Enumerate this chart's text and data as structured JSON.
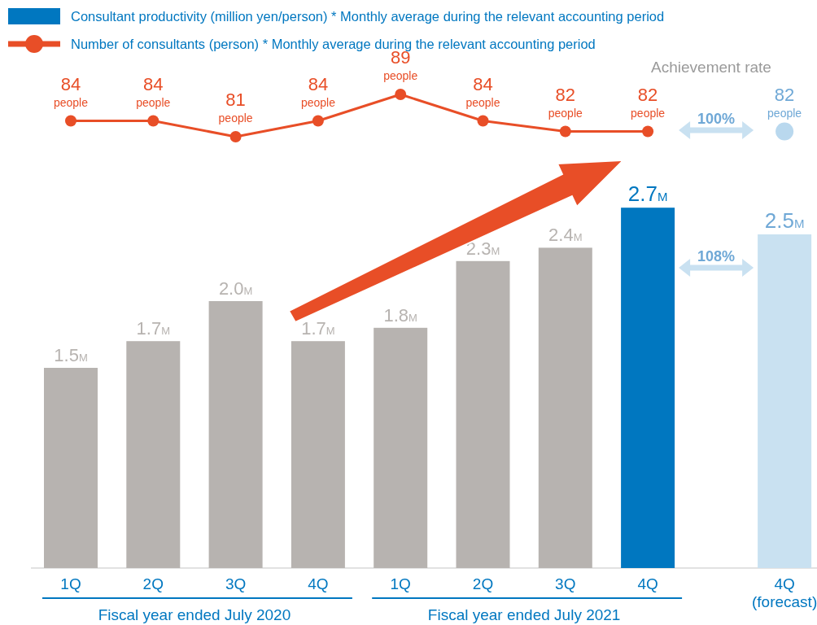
{
  "chart_data": [
    {
      "type": "line",
      "categories": [
        "1Q",
        "2Q",
        "3Q",
        "4Q",
        "1Q",
        "2Q",
        "3Q",
        "4Q",
        "4Q\n(forecast)"
      ],
      "series": [
        {
          "name": "Number of consultants (person) * Monthly average during the relevant accounting period",
          "color": "#e84e27",
          "values": [
            84,
            84,
            81,
            84,
            89,
            84,
            82,
            82,
            null
          ],
          "value_labels": [
            "84\npeople",
            "84\npeople",
            "81\npeople",
            "84\npeople",
            "89\npeople",
            "84\npeople",
            "82\npeople",
            "82\npeople",
            null
          ]
        },
        {
          "type": "scatter",
          "color": "#b9d8ee",
          "values": [
            null,
            null,
            null,
            null,
            null,
            null,
            null,
            null,
            82
          ],
          "value_labels": [
            null,
            null,
            null,
            null,
            null,
            null,
            null,
            null,
            "82\npeople"
          ]
        }
      ],
      "marker": "circle",
      "legend": "top left",
      "tick_labels": false,
      "annotations": [
        "Achievement rate",
        "100%"
      ]
    },
    {
      "type": "bar",
      "categories": [
        "1Q",
        "2Q",
        "3Q",
        "4Q",
        "1Q",
        "2Q",
        "3Q",
        "4Q",
        "4Q\n(forecast)"
      ],
      "series": [
        {
          "name": "Consultant productivity (million yen/person) * Monthly average during the relevant accounting period",
          "color": "#0077c0",
          "colors": [
            "#b7b3b0",
            "#b7b3b0",
            "#b7b3b0",
            "#b7b3b0",
            "#b7b3b0",
            "#b7b3b0",
            "#b7b3b0",
            "#0077c0",
            "#c9e1f1"
          ],
          "values": [
            1.5,
            1.7,
            2.0,
            1.7,
            1.8,
            2.3,
            2.4,
            2.7,
            2.5
          ],
          "value_labels": [
            "1.5M",
            "1.7M",
            "2.0M",
            "1.7M",
            "1.8M",
            "2.3M",
            "2.4M",
            "2.7M",
            "2.5M"
          ]
        }
      ],
      "legend": "top left",
      "tick_labels": "x",
      "annotations": [
        "108%",
        "Fiscal year ended July 2020",
        "Fiscal year ended July 2021"
      ]
    }
  ]
}
